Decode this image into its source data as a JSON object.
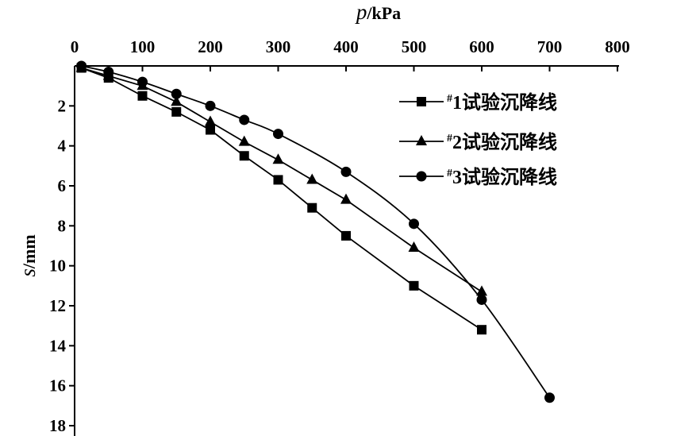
{
  "chart_data": {
    "type": "line",
    "x_axis": {
      "label_var": "p",
      "label_unit": "/kPa",
      "position": "top",
      "range": [
        0,
        800
      ],
      "ticks": [
        0,
        100,
        200,
        300,
        400,
        500,
        600,
        700,
        800
      ],
      "tick_labels": [
        "0",
        "100",
        "200",
        "300",
        "400",
        "500",
        "600",
        "700",
        "800"
      ]
    },
    "y_axis": {
      "label_var": "s",
      "label_unit": "/mm",
      "inverted": true,
      "range": [
        0,
        18
      ],
      "ticks": [
        2,
        4,
        6,
        8,
        10,
        12,
        14,
        16,
        18
      ],
      "tick_labels": [
        "2",
        "4",
        "6",
        "8",
        "10",
        "12",
        "14",
        "16",
        "18"
      ]
    },
    "grid": false,
    "legend_position": "top-right",
    "series": [
      {
        "name": "#1试验沉降线",
        "name_sup": "#",
        "name_main": "1试验沉降线",
        "marker": "square",
        "smooth": false,
        "x": [
          10,
          50,
          100,
          150,
          200,
          250,
          300,
          350,
          400,
          500,
          600
        ],
        "y": [
          0.1,
          0.6,
          1.5,
          2.3,
          3.2,
          4.5,
          5.7,
          7.1,
          8.5,
          11.0,
          13.2
        ]
      },
      {
        "name": "#2试验沉降线",
        "name_sup": "#",
        "name_main": "2试验沉降线",
        "marker": "triangle",
        "smooth": false,
        "x": [
          10,
          50,
          100,
          150,
          200,
          250,
          300,
          350,
          400,
          500,
          600
        ],
        "y": [
          0.1,
          0.5,
          1.0,
          1.8,
          2.8,
          3.8,
          4.7,
          5.7,
          6.7,
          9.1,
          11.3
        ]
      },
      {
        "name": "#3试验沉降线",
        "name_sup": "#",
        "name_main": "3试验沉降线",
        "marker": "circle",
        "smooth": true,
        "x": [
          10,
          50,
          100,
          150,
          200,
          250,
          300,
          400,
          500,
          600,
          700
        ],
        "y": [
          0.0,
          0.3,
          0.8,
          1.4,
          2.0,
          2.7,
          3.4,
          5.3,
          7.9,
          11.7,
          16.6
        ]
      }
    ]
  }
}
